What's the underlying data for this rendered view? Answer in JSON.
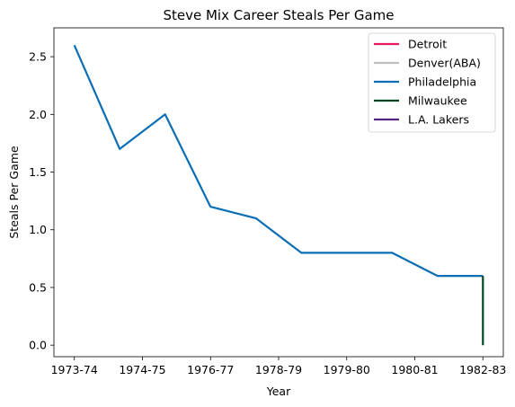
{
  "chart_data": {
    "type": "line",
    "title": "Steve Mix Career Steals Per Game",
    "xlabel": "Year",
    "ylabel": "Steals Per Game",
    "x_ticks": [
      "1973-74",
      "1974-75",
      "1976-77",
      "1978-79",
      "1979-80",
      "1980-81",
      "1982-83"
    ],
    "y_ticks": [
      "0.0",
      "0.5",
      "1.0",
      "1.5",
      "2.0",
      "2.5"
    ],
    "ylim": [
      -0.1,
      2.75
    ],
    "grid": false,
    "legend_position": "top-right",
    "series": [
      {
        "name": "Detroit",
        "color": "#e8185a",
        "points": []
      },
      {
        "name": "Denver(ABA)",
        "color": "#bfbfbf",
        "points": []
      },
      {
        "name": "Philadelphia",
        "color": "#0a6eb4",
        "points": [
          [
            0,
            2.6
          ],
          [
            1,
            1.7
          ],
          [
            2,
            2.0
          ],
          [
            3,
            1.2
          ],
          [
            4,
            1.1
          ],
          [
            5,
            0.8
          ],
          [
            6,
            0.8
          ],
          [
            7,
            0.8
          ],
          [
            8,
            0.6
          ],
          [
            9,
            0.6
          ]
        ]
      },
      {
        "name": "Milwaukee",
        "color": "#00471b",
        "points": [
          [
            9,
            0.6
          ],
          [
            9,
            0.0
          ]
        ]
      },
      {
        "name": "L.A. Lakers",
        "color": "#552583",
        "points": []
      }
    ],
    "x_tick_positions": [
      0,
      1.5,
      3,
      4.5,
      6,
      7.5,
      9
    ]
  }
}
